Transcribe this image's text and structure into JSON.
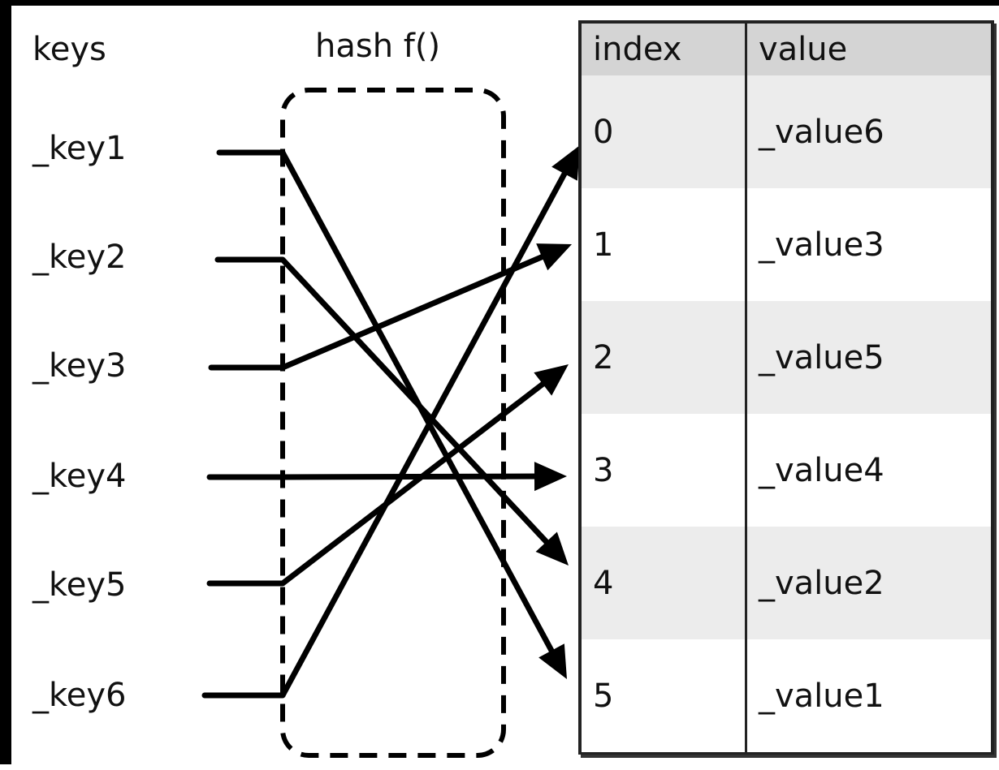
{
  "header": {
    "keys_label": "keys",
    "hash_label": "hash f()"
  },
  "table": {
    "columns": [
      "index",
      "value"
    ],
    "rows": [
      {
        "index": "0",
        "value": "_value6"
      },
      {
        "index": "1",
        "value": "_value3"
      },
      {
        "index": "2",
        "value": "_value5"
      },
      {
        "index": "3",
        "value": "_value4"
      },
      {
        "index": "4",
        "value": "_value2"
      },
      {
        "index": "5",
        "value": "_value1"
      }
    ]
  },
  "keys": [
    "_key1",
    "_key2",
    "_key3",
    "_key4",
    "_key5",
    "_key6"
  ],
  "mapping": [
    {
      "key": "_key1",
      "index": "5"
    },
    {
      "key": "_key2",
      "index": "4"
    },
    {
      "key": "_key3",
      "index": "1"
    },
    {
      "key": "_key4",
      "index": "3"
    },
    {
      "key": "_key5",
      "index": "2"
    },
    {
      "key": "_key6",
      "index": "0"
    }
  ],
  "colors": {
    "line": "#000000",
    "header_bg": "#d4d4d4",
    "row_shaded": "#ececec",
    "row_plain": "#ffffff"
  }
}
